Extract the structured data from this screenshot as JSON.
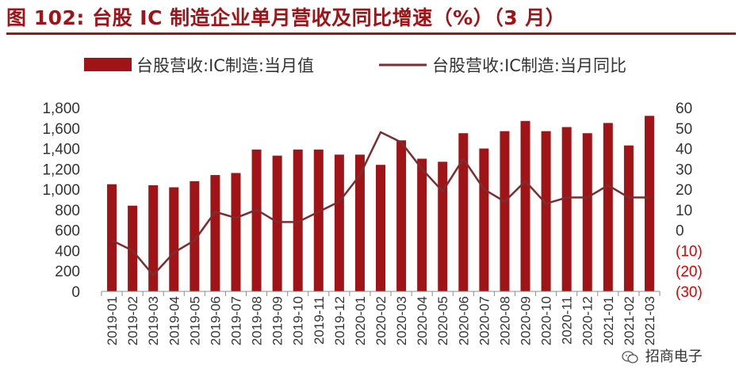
{
  "title": "图 102:  台股 IC 制造企业单月营收及同比增速（%）（3 月）",
  "watermark": "招商电子",
  "colors": {
    "bar": "#a01418",
    "line": "#7b2d2f",
    "accent": "#a01418",
    "negative": "#e00000"
  },
  "chart_data": {
    "type": "bar",
    "categories": [
      "2019-01",
      "2019-02",
      "2019-03",
      "2019-04",
      "2019-05",
      "2019-06",
      "2019-07",
      "2019-08",
      "2019-09",
      "2019-10",
      "2019-11",
      "2019-12",
      "2020-01",
      "2020-02",
      "2020-03",
      "2020-04",
      "2020-05",
      "2020-06",
      "2020-07",
      "2020-08",
      "2020-09",
      "2020-10",
      "2020-11",
      "2020-12",
      "2021-01",
      "2021-02",
      "2021-03"
    ],
    "series": [
      {
        "name": "台股营收:IC制造:当月值",
        "type": "bar",
        "axis": "left",
        "values": [
          1050,
          840,
          1040,
          1020,
          1080,
          1140,
          1160,
          1390,
          1330,
          1390,
          1390,
          1340,
          1340,
          1240,
          1480,
          1300,
          1270,
          1550,
          1400,
          1570,
          1670,
          1570,
          1610,
          1550,
          1650,
          1430,
          1720
        ]
      },
      {
        "name": "台股营收:IC制造:当月同比",
        "type": "line",
        "axis": "right",
        "values": [
          -5,
          -10,
          -22,
          -11,
          -5,
          9,
          6,
          10,
          4,
          4,
          9,
          14,
          27,
          48,
          43,
          30,
          19,
          35,
          20,
          14,
          24,
          13,
          16,
          16,
          22,
          16,
          16
        ]
      }
    ],
    "y_left": {
      "min": 0,
      "max": 1800,
      "ticks": [
        "0",
        "200",
        "400",
        "600",
        "800",
        "1,000",
        "1,200",
        "1,400",
        "1,600",
        "1,800"
      ]
    },
    "y_right": {
      "min": -30,
      "max": 60,
      "ticks": [
        "(30)",
        "(20)",
        "(10)",
        "0",
        "10",
        "20",
        "30",
        "40",
        "50",
        "60"
      ]
    },
    "grid": false,
    "legend": "top"
  }
}
